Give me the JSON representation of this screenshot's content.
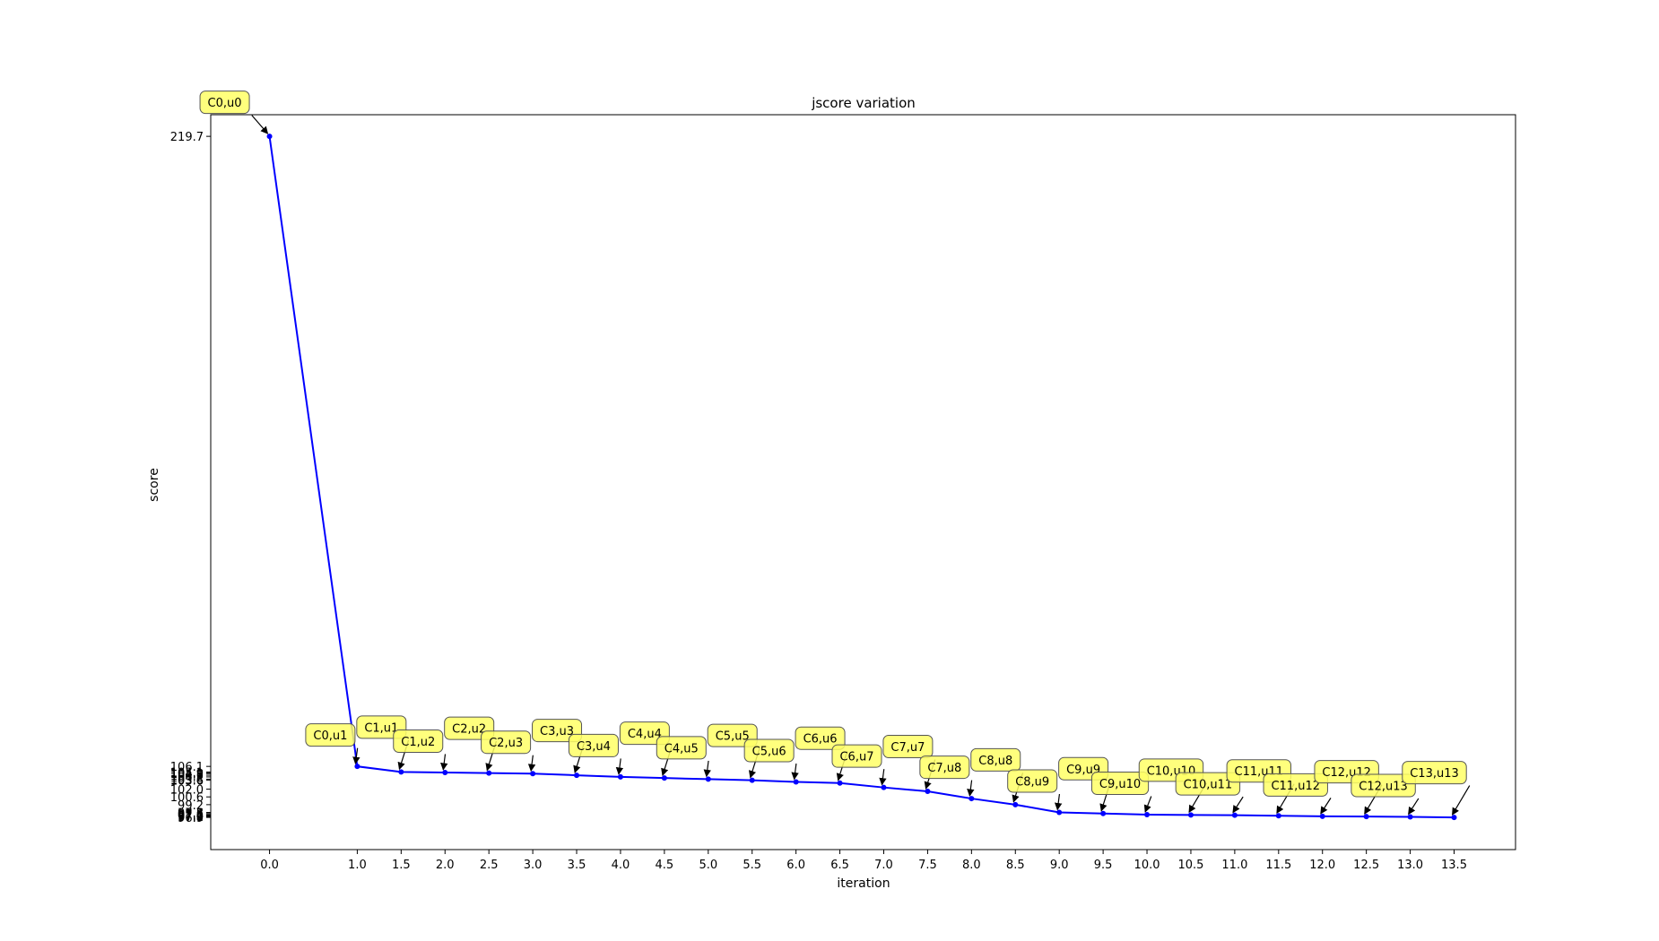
{
  "chart_data": {
    "type": "line",
    "title": "jscore variation",
    "xlabel": "iteration",
    "ylabel": "score",
    "xlim": [
      -0.67,
      14.2
    ],
    "ylim": [
      91.1,
      223.6
    ],
    "x_ticks": [
      0.0,
      1.0,
      1.5,
      2.0,
      2.5,
      3.0,
      3.5,
      4.0,
      4.5,
      5.0,
      5.5,
      6.0,
      6.5,
      7.0,
      7.5,
      8.0,
      8.5,
      9.0,
      9.5,
      10.0,
      10.5,
      11.0,
      11.5,
      12.0,
      12.5,
      13.0,
      13.5
    ],
    "x_tick_labels": [
      "0.0",
      "1.0",
      "1.5",
      "2.0",
      "2.5",
      "3.0",
      "3.5",
      "4.0",
      "4.5",
      "5.0",
      "5.5",
      "6.0",
      "6.5",
      "7.0",
      "7.5",
      "8.0",
      "8.5",
      "9.0",
      "9.5",
      "10.0",
      "10.5",
      "11.0",
      "11.5",
      "12.0",
      "12.5",
      "13.0",
      "13.5"
    ],
    "y_ticks": [
      219.7,
      106.1,
      105.1,
      104.9,
      104.8,
      104.5,
      104.2,
      103.8,
      103.6,
      102.0,
      100.6,
      99.2,
      97.8,
      97.6,
      97.4,
      97.3,
      97.2,
      97.1,
      97.0,
      96.9
    ],
    "y_tick_labels": [
      "219.7",
      "106.1",
      "105.1",
      "104.9",
      "104.8",
      "104.5",
      "104.2",
      "103.8",
      "103.6",
      "102.0",
      "100.6",
      "99.2",
      "97.8",
      "97.6",
      "97.4",
      "97.3",
      "97.2",
      "97.1",
      "97.0",
      "96.9"
    ],
    "series": [
      {
        "color": "#0000ff",
        "marker": "dot",
        "x": [
          0.0,
          1.0,
          1.5,
          2.0,
          2.5,
          3.0,
          3.5,
          4.0,
          4.5,
          5.0,
          5.5,
          6.0,
          6.5,
          7.0,
          7.5,
          8.0,
          8.5,
          9.0,
          9.5,
          10.0,
          10.5,
          11.0,
          11.5,
          12.0,
          12.5,
          13.0,
          13.5
        ],
        "y": [
          219.7,
          106.1,
          105.1,
          105.0,
          104.9,
          104.8,
          104.5,
          104.2,
          104.0,
          103.8,
          103.6,
          103.3,
          103.1,
          102.3,
          101.6,
          100.3,
          99.2,
          97.8,
          97.6,
          97.4,
          97.35,
          97.3,
          97.2,
          97.1,
          97.05,
          97.0,
          96.9
        ],
        "labels": [
          "C0,u0",
          "C0,u1",
          "C1,u1",
          "C1,u2",
          "C2,u2",
          "C2,u3",
          "C3,u3",
          "C3,u4",
          "C4,u4",
          "C4,u5",
          "C5,u5",
          "C5,u6",
          "C6,u6",
          "C6,u7",
          "C7,u7",
          "C7,u8",
          "C8,u8",
          "C8,u9",
          "C9,u9",
          "C9,u10",
          "C10,u10",
          "C10,u11",
          "C11,u11",
          "C11,u12",
          "C12,u12",
          "C12,u13",
          "C13,u13"
        ]
      }
    ],
    "annotation_style": {
      "box_fill": "#ffff66",
      "box_stroke": "#555555",
      "arrow_color": "#000000"
    },
    "grid": false
  }
}
